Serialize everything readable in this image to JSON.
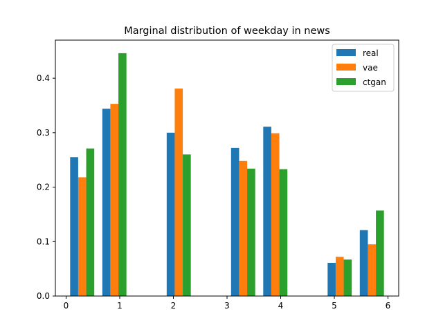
{
  "chart_data": {
    "type": "bar",
    "title": "Marginal distribution of weekday in news",
    "xlabel": "",
    "ylabel": "",
    "xlim": [
      -0.2,
      6.2
    ],
    "ylim": [
      0,
      0.47
    ],
    "xticks": [
      0,
      1,
      2,
      3,
      4,
      5,
      6
    ],
    "yticks": [
      0.0,
      0.1,
      0.2,
      0.3,
      0.4
    ],
    "ytick_labels": [
      "0.0",
      "0.1",
      "0.2",
      "0.3",
      "0.4"
    ],
    "grid": false,
    "legend_position": "top-right",
    "series": [
      {
        "name": "real",
        "color": "#1f77b4",
        "x": [
          0.15,
          0.75,
          1.95,
          3.15,
          3.75,
          4.95,
          5.55
        ],
        "values": [
          0.255,
          0.344,
          0.3,
          0.272,
          0.311,
          0.061,
          0.121
        ]
      },
      {
        "name": "vae",
        "color": "#ff7f0e",
        "x": [
          0.3,
          0.9,
          2.1,
          3.3,
          3.9,
          5.1,
          5.7
        ],
        "values": [
          0.218,
          0.353,
          0.381,
          0.248,
          0.299,
          0.072,
          0.095
        ]
      },
      {
        "name": "ctgan",
        "color": "#2ca02c",
        "x": [
          0.45,
          1.05,
          2.25,
          3.45,
          4.05,
          5.25,
          5.85
        ],
        "values": [
          0.271,
          0.446,
          0.26,
          0.234,
          0.233,
          0.067,
          0.157
        ]
      }
    ]
  }
}
